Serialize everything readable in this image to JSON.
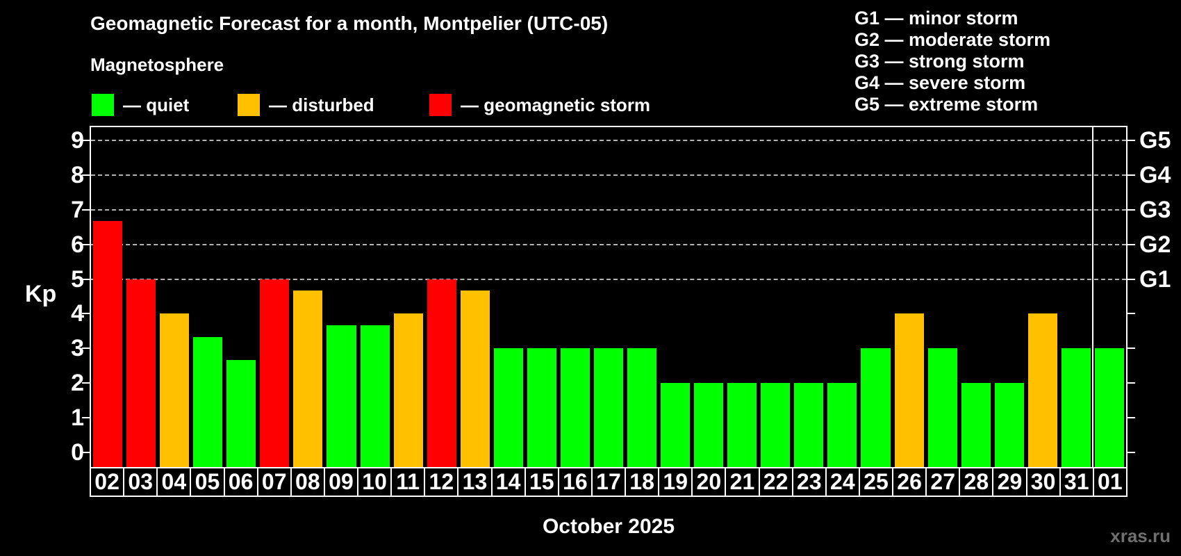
{
  "header": {
    "title": "Geomagnetic Forecast for a month, Montpelier (UTC-05)",
    "subtitle": "Magnetosphere"
  },
  "legend": [
    {
      "status": "quiet",
      "label": "— quiet",
      "color": "#00ff00"
    },
    {
      "status": "disturbed",
      "label": "— disturbed",
      "color": "#ffc000"
    },
    {
      "status": "storm",
      "label": "— geomagnetic storm",
      "color": "#ff0000"
    }
  ],
  "gscale_legend": [
    "G1 — minor storm",
    "G2 — moderate storm",
    "G3 — strong storm",
    "G4 — severe storm",
    "G5 — extreme storm"
  ],
  "chart_data": {
    "type": "bar",
    "title": "Geomagnetic Forecast for a month, Montpelier (UTC-05)",
    "ylabel": "Kp",
    "xlabel": "October 2025",
    "ylim": [
      0,
      9.4
    ],
    "grid": "dashed horizontal at Kp 5-9 only",
    "yticks": [
      0,
      1,
      2,
      3,
      4,
      5,
      6,
      7,
      8,
      9
    ],
    "grid_levels_kp": [
      5,
      6,
      7,
      8,
      9
    ],
    "right_axis_labels": [
      {
        "label": "G1",
        "kp": 5
      },
      {
        "label": "G2",
        "kp": 6
      },
      {
        "label": "G3",
        "kp": 7
      },
      {
        "label": "G4",
        "kp": 8
      },
      {
        "label": "G5",
        "kp": 9
      }
    ],
    "categories": [
      "02",
      "03",
      "04",
      "05",
      "06",
      "07",
      "08",
      "09",
      "10",
      "11",
      "12",
      "13",
      "14",
      "15",
      "16",
      "17",
      "18",
      "19",
      "20",
      "21",
      "22",
      "23",
      "24",
      "25",
      "26",
      "27",
      "28",
      "29",
      "30",
      "31",
      "01"
    ],
    "series": [
      {
        "name": "Kp forecast",
        "values": [
          6.67,
          5,
          4,
          3.33,
          2.67,
          5,
          4.67,
          3.67,
          3.67,
          4,
          5,
          4.67,
          3,
          3,
          3,
          3,
          3,
          2,
          2,
          2,
          2,
          2,
          2,
          3,
          4,
          3,
          2,
          2,
          4,
          3,
          3
        ],
        "statuses": [
          "storm",
          "storm",
          "disturbed",
          "quiet",
          "quiet",
          "storm",
          "disturbed",
          "quiet",
          "quiet",
          "disturbed",
          "storm",
          "disturbed",
          "quiet",
          "quiet",
          "quiet",
          "quiet",
          "quiet",
          "quiet",
          "quiet",
          "quiet",
          "quiet",
          "quiet",
          "quiet",
          "quiet",
          "disturbed",
          "quiet",
          "quiet",
          "quiet",
          "disturbed",
          "quiet",
          "quiet"
        ]
      }
    ],
    "status_colors": {
      "quiet": "#00ff00",
      "disturbed": "#ffc000",
      "storm": "#ff0000"
    },
    "month_separator_after_category": "31",
    "legend_position": "top-left"
  },
  "footer": {
    "month_label": "October 2025",
    "watermark": "xras.ru"
  }
}
